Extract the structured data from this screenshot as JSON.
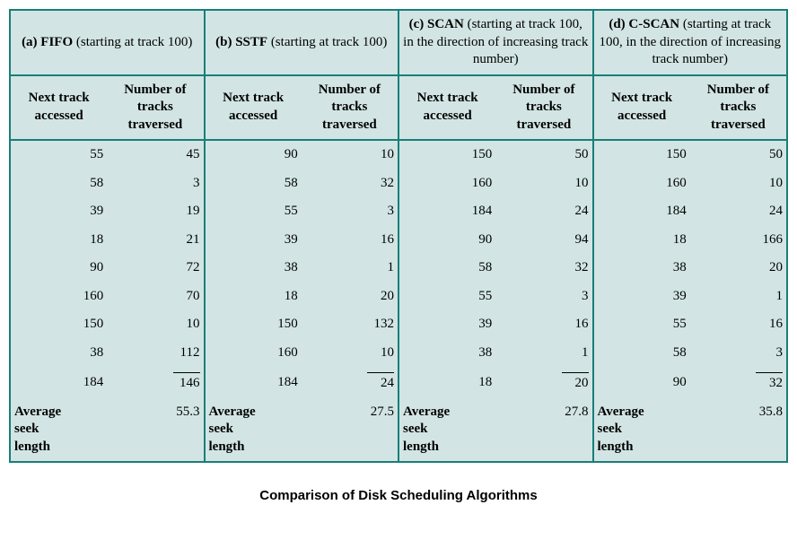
{
  "colors": {
    "border": "#1a7e78",
    "cell_bg": "#d2e5e4",
    "text": "#000000",
    "page_bg": "#ffffff"
  },
  "caption": "Comparison of Disk Scheduling Algorithms",
  "subheaders": {
    "col1": "Next track accessed",
    "col2": "Number of tracks traversed"
  },
  "avg_label": "Average seek length",
  "algorithms": [
    {
      "tag": "(a) FIFO",
      "desc": " (starting at track 100)",
      "rows": [
        [
          55,
          45
        ],
        [
          58,
          3
        ],
        [
          39,
          19
        ],
        [
          18,
          21
        ],
        [
          90,
          72
        ],
        [
          160,
          70
        ],
        [
          150,
          10
        ],
        [
          38,
          112
        ],
        [
          184,
          146
        ]
      ],
      "avg": "55.3"
    },
    {
      "tag": "(b) SSTF",
      "desc": " (starting at track 100)",
      "rows": [
        [
          90,
          10
        ],
        [
          58,
          32
        ],
        [
          55,
          3
        ],
        [
          39,
          16
        ],
        [
          38,
          1
        ],
        [
          18,
          20
        ],
        [
          150,
          132
        ],
        [
          160,
          10
        ],
        [
          184,
          24
        ]
      ],
      "avg": "27.5"
    },
    {
      "tag": "(c) SCAN",
      "desc": " (starting at track 100, in the direction of increasing track number)",
      "rows": [
        [
          150,
          50
        ],
        [
          160,
          10
        ],
        [
          184,
          24
        ],
        [
          90,
          94
        ],
        [
          58,
          32
        ],
        [
          55,
          3
        ],
        [
          39,
          16
        ],
        [
          38,
          1
        ],
        [
          18,
          20
        ]
      ],
      "avg": "27.8"
    },
    {
      "tag": "(d) C-SCAN",
      "desc": " (starting at track 100, in the direction of increasing track number)",
      "rows": [
        [
          150,
          50
        ],
        [
          160,
          10
        ],
        [
          184,
          24
        ],
        [
          18,
          166
        ],
        [
          38,
          20
        ],
        [
          39,
          1
        ],
        [
          55,
          16
        ],
        [
          58,
          3
        ],
        [
          90,
          32
        ]
      ],
      "avg": "35.8"
    }
  ]
}
